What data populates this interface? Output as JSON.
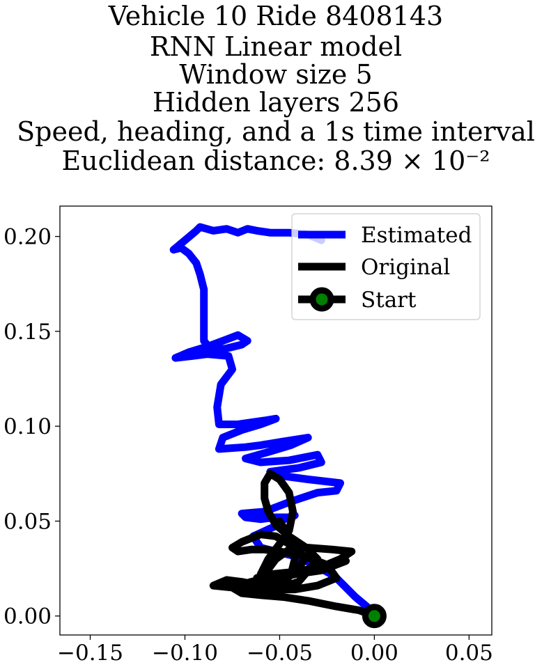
{
  "chart_data": {
    "type": "line",
    "title_lines": [
      "Vehicle 10 Ride 8408143",
      "RNN Linear model",
      "Window size 5",
      "Hidden layers 256",
      "Speed, heading, and a 1s time interval",
      "Euclidean distance: 8.39 × 10⁻²"
    ],
    "xlabel": "",
    "ylabel": "",
    "xlim": [
      -0.166,
      0.062
    ],
    "ylim": [
      -0.01,
      0.216
    ],
    "xticks": [
      -0.15,
      -0.1,
      -0.05,
      0.0,
      0.05
    ],
    "xtick_labels": [
      "−0.15",
      "−0.10",
      "−0.05",
      "0.00",
      "0.05"
    ],
    "yticks": [
      0.0,
      0.05,
      0.1,
      0.15,
      0.2
    ],
    "ytick_labels": [
      "0.00",
      "0.05",
      "0.10",
      "0.15",
      "0.20"
    ],
    "grid": false,
    "legend_position": "top-right",
    "series": [
      {
        "name": "Estimated",
        "color": "#0000ff",
        "x": [
          0.0,
          -0.004,
          -0.01,
          -0.016,
          -0.021,
          -0.03,
          -0.04,
          -0.052,
          -0.06,
          -0.064,
          -0.053,
          -0.05,
          -0.045,
          -0.042,
          -0.044,
          -0.052,
          -0.06,
          -0.068,
          -0.07,
          -0.058,
          -0.045,
          -0.03,
          -0.02,
          -0.018,
          -0.035,
          -0.05,
          -0.055,
          -0.048,
          -0.04,
          -0.028,
          -0.03,
          -0.045,
          -0.06,
          -0.068,
          -0.054,
          -0.044,
          -0.035,
          -0.048,
          -0.06,
          -0.068,
          -0.082,
          -0.08,
          -0.07,
          -0.06,
          -0.052,
          -0.058,
          -0.065,
          -0.072,
          -0.082,
          -0.083,
          -0.081,
          -0.075,
          -0.077,
          -0.088,
          -0.096,
          -0.105,
          -0.098,
          -0.088,
          -0.08,
          -0.072,
          -0.067,
          -0.07,
          -0.078,
          -0.086,
          -0.09,
          -0.09,
          -0.09,
          -0.092,
          -0.094,
          -0.098,
          -0.102,
          -0.106,
          -0.1,
          -0.094,
          -0.092,
          -0.085,
          -0.078,
          -0.072,
          -0.067,
          -0.062,
          -0.055,
          -0.045,
          -0.035,
          -0.028
        ],
        "y": [
          0.0,
          0.005,
          0.01,
          0.016,
          0.021,
          0.026,
          0.031,
          0.034,
          0.036,
          0.042,
          0.047,
          0.05,
          0.052,
          0.053,
          0.052,
          0.052,
          0.051,
          0.052,
          0.054,
          0.055,
          0.06,
          0.065,
          0.066,
          0.07,
          0.072,
          0.074,
          0.076,
          0.077,
          0.078,
          0.081,
          0.085,
          0.082,
          0.081,
          0.083,
          0.087,
          0.09,
          0.094,
          0.092,
          0.09,
          0.089,
          0.088,
          0.094,
          0.098,
          0.101,
          0.104,
          0.103,
          0.102,
          0.101,
          0.101,
          0.11,
          0.122,
          0.13,
          0.137,
          0.138,
          0.137,
          0.136,
          0.139,
          0.142,
          0.145,
          0.148,
          0.145,
          0.143,
          0.141,
          0.14,
          0.145,
          0.16,
          0.172,
          0.18,
          0.186,
          0.191,
          0.194,
          0.193,
          0.198,
          0.203,
          0.205,
          0.203,
          0.204,
          0.202,
          0.204,
          0.203,
          0.202,
          0.202,
          0.201,
          0.198
        ]
      },
      {
        "name": "Original",
        "color": "#000000",
        "x": [
          0.0,
          -0.008,
          -0.02,
          -0.035,
          -0.048,
          -0.06,
          -0.07,
          -0.075,
          -0.065,
          -0.055,
          -0.045,
          -0.035,
          -0.028,
          -0.015,
          -0.022,
          -0.032,
          -0.045,
          -0.055,
          -0.062,
          -0.06,
          -0.052,
          -0.042,
          -0.03,
          -0.02,
          -0.025,
          -0.038,
          -0.05,
          -0.058,
          -0.065,
          -0.072,
          -0.075,
          -0.07,
          -0.06,
          -0.052,
          -0.045,
          -0.04,
          -0.037,
          -0.04,
          -0.048,
          -0.055,
          -0.06,
          -0.058,
          -0.052,
          -0.045,
          -0.035,
          -0.022,
          -0.012,
          -0.018,
          -0.03,
          -0.042,
          -0.052,
          -0.06,
          -0.065,
          -0.07,
          -0.078,
          -0.085,
          -0.075,
          -0.062,
          -0.05,
          -0.04,
          -0.034,
          -0.03,
          -0.036,
          -0.045,
          -0.052,
          -0.056,
          -0.058,
          -0.058,
          -0.055,
          -0.05,
          -0.045,
          -0.043,
          -0.045,
          -0.05,
          -0.056,
          -0.06,
          -0.062,
          -0.058,
          -0.05,
          -0.044,
          -0.042,
          -0.044,
          -0.05
        ],
        "y": [
          0.0,
          0.003,
          0.005,
          0.008,
          0.01,
          0.011,
          0.012,
          0.015,
          0.018,
          0.02,
          0.022,
          0.023,
          0.024,
          0.029,
          0.027,
          0.025,
          0.023,
          0.022,
          0.02,
          0.016,
          0.014,
          0.014,
          0.016,
          0.02,
          0.027,
          0.032,
          0.034,
          0.035,
          0.035,
          0.034,
          0.036,
          0.039,
          0.043,
          0.042,
          0.038,
          0.035,
          0.03,
          0.025,
          0.02,
          0.016,
          0.012,
          0.022,
          0.03,
          0.035,
          0.036,
          0.035,
          0.034,
          0.03,
          0.025,
          0.022,
          0.02,
          0.018,
          0.017,
          0.018,
          0.019,
          0.016,
          0.015,
          0.014,
          0.015,
          0.018,
          0.025,
          0.03,
          0.036,
          0.042,
          0.048,
          0.055,
          0.062,
          0.07,
          0.075,
          0.072,
          0.065,
          0.055,
          0.045,
          0.038,
          0.03,
          0.022,
          0.015,
          0.012,
          0.015,
          0.022,
          0.03,
          0.04,
          0.05
        ]
      }
    ],
    "start_point": {
      "name": "Start",
      "x": 0.0,
      "y": 0.0,
      "edge_color": "#000000",
      "face_color": "#008000"
    },
    "legend_entries": [
      "Estimated",
      "Original",
      "Start"
    ]
  }
}
